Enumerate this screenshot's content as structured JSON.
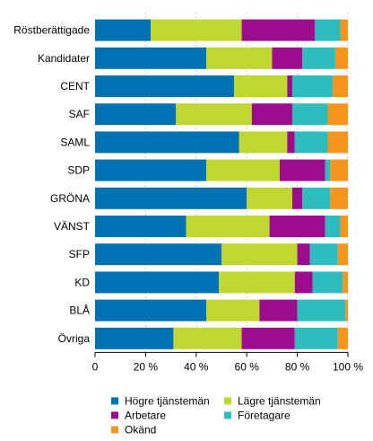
{
  "chart_data": {
    "type": "bar",
    "orientation": "horizontal",
    "stacked": true,
    "categories": [
      "Röstberättigade",
      "Kandidater",
      "CENT",
      "SAF",
      "SAML",
      "SDP",
      "GRÖNA",
      "VÄNST",
      "SFP",
      "KD",
      "BLÅ",
      "Övriga"
    ],
    "series": [
      {
        "name": "Högre tjänstemän",
        "color": "#0072b2",
        "values": [
          22,
          44,
          55,
          32,
          57,
          44,
          60,
          36,
          50,
          49,
          44,
          31
        ]
      },
      {
        "name": "Lägre tjänstemän",
        "color": "#bfd730",
        "values": [
          36,
          26,
          21,
          30,
          19,
          29,
          18,
          33,
          30,
          30,
          21,
          27
        ]
      },
      {
        "name": "Arbetare",
        "color": "#9c0d8e",
        "values": [
          29,
          12,
          2,
          16,
          3,
          18,
          4,
          22,
          5,
          7,
          15,
          21
        ]
      },
      {
        "name": "Företagare",
        "color": "#2fbcbc",
        "values": [
          10,
          13,
          16,
          14,
          13,
          2,
          11,
          6,
          11,
          12,
          19,
          17
        ]
      },
      {
        "name": "Okänd",
        "color": "#f7941d",
        "values": [
          3,
          5,
          6,
          8,
          8,
          7,
          7,
          3,
          4,
          2,
          1,
          4
        ]
      }
    ],
    "xlim": [
      0,
      100
    ],
    "xticks": [
      0,
      20,
      40,
      60,
      80,
      100
    ],
    "xtick_labels": [
      "0",
      "20 %",
      "40 %",
      "60 %",
      "80 %",
      "100 %"
    ],
    "xlabel": "",
    "ylabel": "",
    "grid": "vertical-dotted",
    "legend_position": "bottom"
  }
}
